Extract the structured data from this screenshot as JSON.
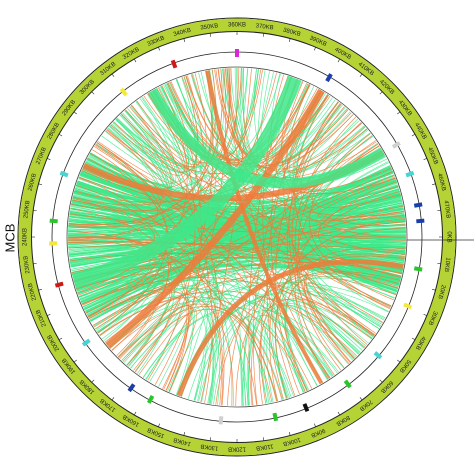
{
  "genome_label": "MCB",
  "ring_labels": [
    "0KB",
    "10KB",
    "20KB",
    "30KB",
    "40KB",
    "50KB",
    "60KB",
    "70KB",
    "80KB",
    "90KB",
    "100KB",
    "110KB",
    "120KB",
    "130KB",
    "140KB",
    "150KB",
    "160KB",
    "170KB",
    "180KB",
    "190KB",
    "200KB",
    "210KB",
    "220KB",
    "230KB",
    "240KB",
    "250KB",
    "260KB",
    "270KB",
    "280KB",
    "290KB",
    "300KB",
    "310KB",
    "320KB",
    "330KB",
    "340KB",
    "350KB",
    "360KB",
    "370KB",
    "380KB",
    "390KB",
    "400KB",
    "410KB",
    "420KB",
    "430KB",
    "440KB",
    "450KB",
    "460KB",
    "470KB"
  ]
}
